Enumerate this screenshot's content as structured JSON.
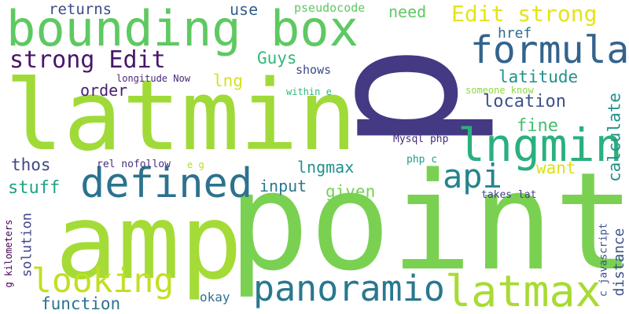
{
  "words": {
    "p": {
      "text": "p",
      "color": "#443983"
    },
    "latmin": {
      "text": "latmin",
      "color": "#a0da39"
    },
    "point": {
      "text": "point",
      "color": "#7ad151"
    },
    "amp": {
      "text": "amp",
      "color": "#a5db36"
    },
    "bounding_box": {
      "text": "bounding box",
      "color": "#5ec962"
    },
    "lngmin": {
      "text": "lngmin",
      "color": "#2ab07f"
    },
    "defined": {
      "text": "defined",
      "color": "#2c728e"
    },
    "formula": {
      "text": "formula",
      "color": "#33638d"
    },
    "latmax": {
      "text": "latmax",
      "color": "#a8db34"
    },
    "panoramio": {
      "text": "panoramio",
      "color": "#2a788e"
    },
    "looking": {
      "text": "looking",
      "color": "#c2df23"
    },
    "api": {
      "text": "api",
      "color": "#25848e"
    },
    "strong_edit": {
      "text": "strong Edit",
      "color": "#481668"
    },
    "edit_strong": {
      "text": "Edit strong",
      "color": "#e5e419"
    },
    "returns": {
      "text": "returns",
      "color": "#3e4989"
    },
    "use": {
      "text": "use",
      "color": "#355f8d"
    },
    "pseudocode": {
      "text": "pseudocode",
      "color": "#5ec962"
    },
    "need": {
      "text": "need",
      "color": "#5ec962"
    },
    "href": {
      "text": "href",
      "color": "#2e6e8e"
    },
    "guys": {
      "text": "Guys",
      "color": "#35b779"
    },
    "lng": {
      "text": "lng",
      "color": "#d5e21a"
    },
    "latitude": {
      "text": "latitude",
      "color": "#21918c"
    },
    "order": {
      "text": "order",
      "color": "#481f70"
    },
    "location": {
      "text": "location",
      "color": "#3b528b"
    },
    "shows": {
      "text": "shows",
      "color": "#3e4989"
    },
    "longitude_now": {
      "text": "longitude Now",
      "color": "#482878"
    },
    "within_e": {
      "text": "within e",
      "color": "#35b779"
    },
    "someone_know": {
      "text": "someone know",
      "color": "#90d743"
    },
    "calculate": {
      "text": "calculate",
      "color": "#21918c"
    },
    "fine": {
      "text": "fine",
      "color": "#44bf70"
    },
    "want": {
      "text": "want",
      "color": "#d8e219"
    },
    "thos": {
      "text": "thos",
      "color": "#404688"
    },
    "mysql_php": {
      "text": "Mysql php",
      "color": "#472d7b"
    },
    "rel_nofollow": {
      "text": "rel nofollow",
      "color": "#472f7d"
    },
    "e_g": {
      "text": "e g",
      "color": "#b5de2b"
    },
    "lngmax": {
      "text": "lngmax",
      "color": "#21918c"
    },
    "php_c": {
      "text": "php c",
      "color": "#1f9e89"
    },
    "input": {
      "text": "input",
      "color": "#2a788e"
    },
    "stuff": {
      "text": "stuff",
      "color": "#1fa187"
    },
    "given": {
      "text": "given",
      "color": "#75d054"
    },
    "takes_lat": {
      "text": "takes lat",
      "color": "#414487"
    },
    "g_kilometers": {
      "text": "g kilometers",
      "color": "#440154"
    },
    "solution": {
      "text": "solution",
      "color": "#414487"
    },
    "function": {
      "text": "function",
      "color": "#2c728e"
    },
    "okay": {
      "text": "okay",
      "color": "#2c728e"
    },
    "c_javascript": {
      "text": "c javascript",
      "color": "#3b528b"
    },
    "distance": {
      "text": "distance",
      "color": "#3b528b"
    }
  }
}
